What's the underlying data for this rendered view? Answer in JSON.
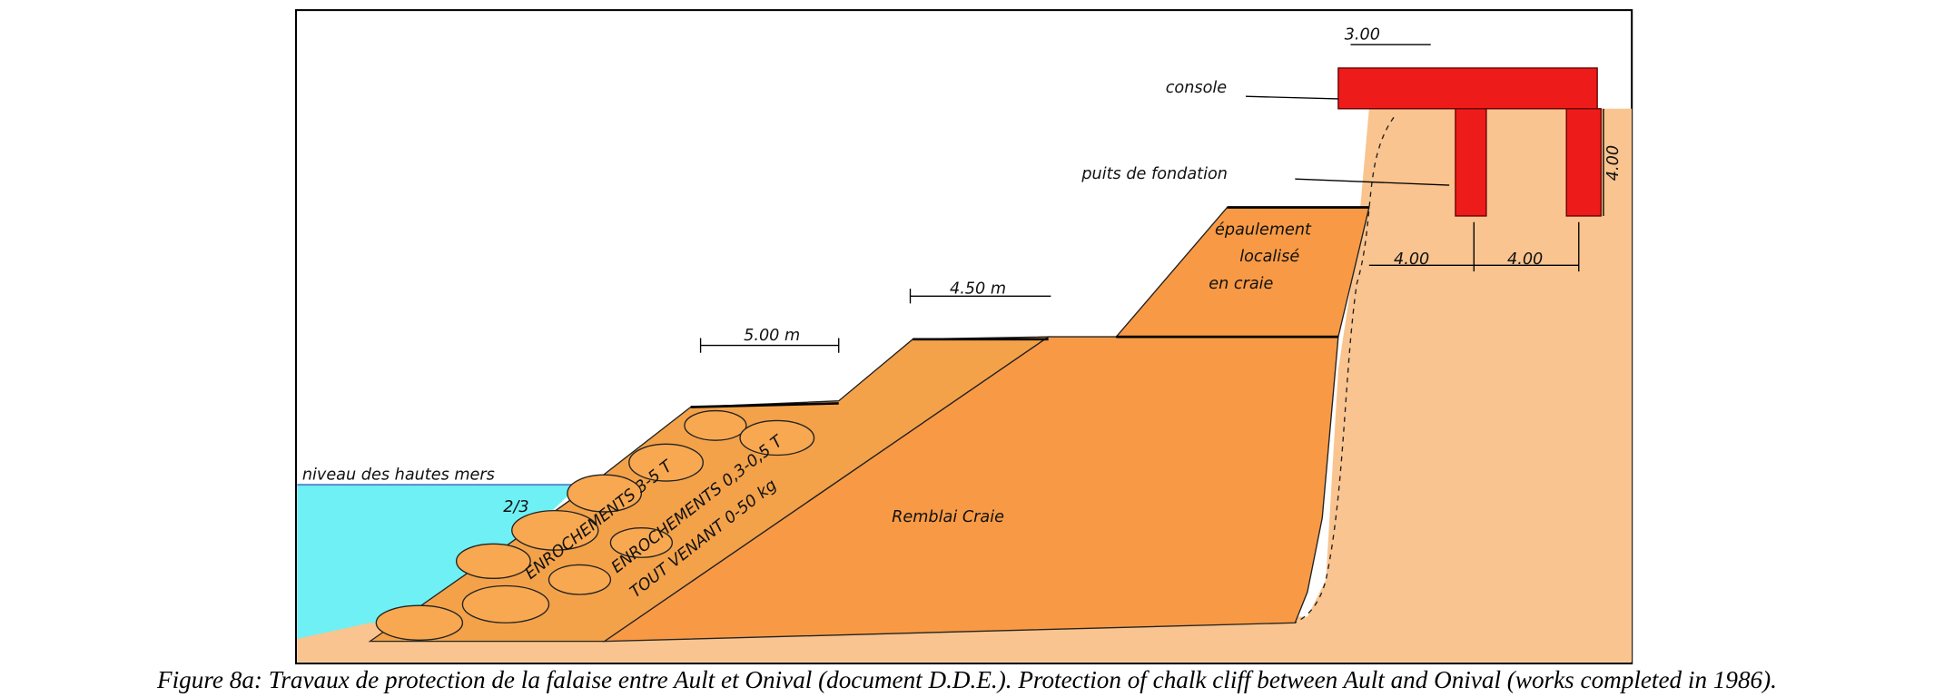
{
  "figure": {
    "labels": {
      "console_width": "3.00",
      "console": "console",
      "puits": "puits de fondation",
      "depth": "4.00",
      "spacing_left": "4.00",
      "spacing_right": "4.00",
      "epaulement": [
        "épaulement",
        "localisé",
        "en craie"
      ],
      "berm_upper": "4.50 m",
      "berm_lower": "5.00 m",
      "sea_level": "niveau des hautes mers",
      "slope": "2/3",
      "rock_outer": "ENROCHEMENTS 3-5 T",
      "rock_inner": "ENROCHEMENTS 0,3-0,5 T",
      "core": "TOUT VENANT 0-50 kg",
      "fill": "Remblai Craie"
    },
    "caption": "Figure 8a: Travaux de protection de la falaise entre Ault et Onival (document D.D.E.). Protection of chalk cliff between Ault and Onival (works completed in 1986)."
  }
}
